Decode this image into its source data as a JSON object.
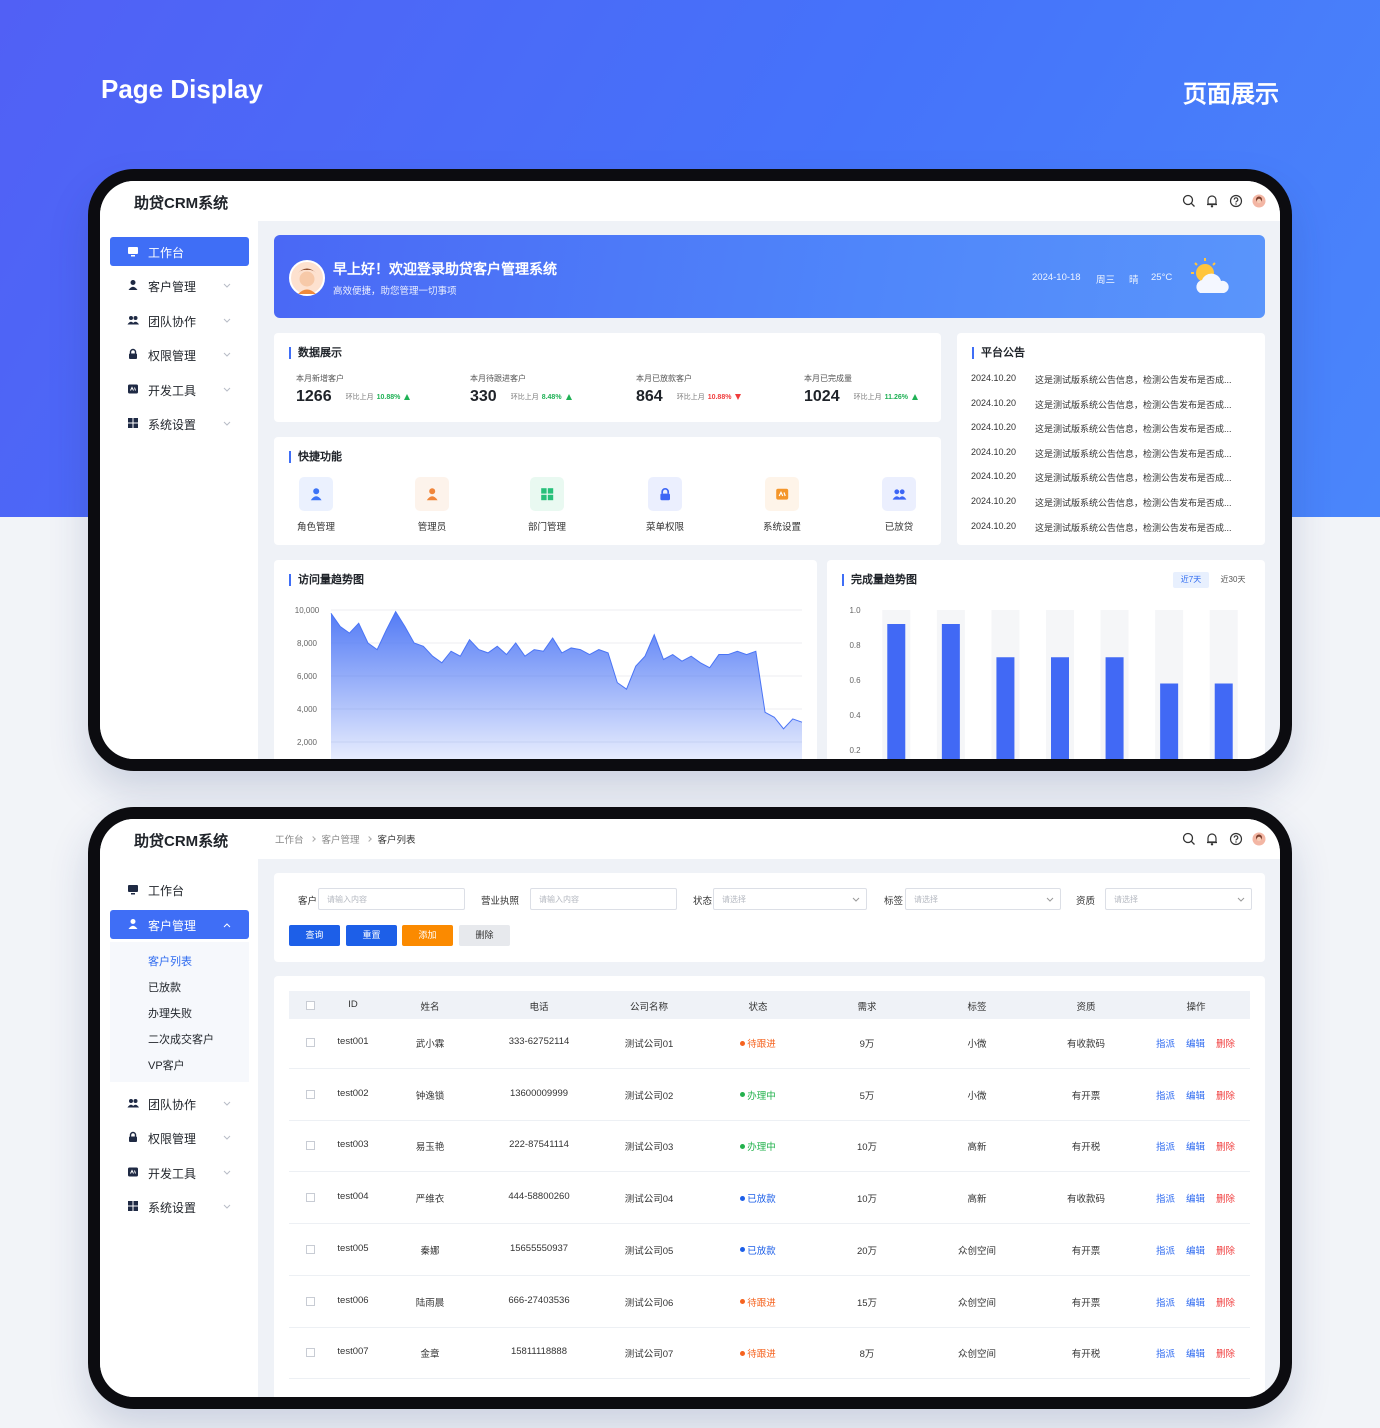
{
  "page": {
    "title": "Page Display",
    "subtitle": "页面展示"
  },
  "dashboard": {
    "app_title": "助贷CRM系统",
    "menu": [
      "工作台",
      "客户管理",
      "团队协作",
      "权限管理",
      "开发工具",
      "系统设置"
    ],
    "welcome": {
      "greeting": "早上好！欢迎登录助贷客户管理系统",
      "subtitle": "高效便捷，助您管理一切事项",
      "date": "2024-10-18",
      "weekday": "周三",
      "weather": "晴",
      "temperature": "25°C"
    },
    "stats": {
      "title": "数据展示",
      "items": [
        {
          "label": "本月新增客户",
          "value": 1266,
          "compare": "环比上月",
          "change": "10.88%",
          "trend": "up"
        },
        {
          "label": "本月待跟进客户",
          "value": 330,
          "compare": "环比上月",
          "change": "8.48%",
          "trend": "up"
        },
        {
          "label": "本月已放款客户",
          "value": 864,
          "compare": "环比上月",
          "change": "10.88%",
          "trend": "down"
        },
        {
          "label": "本月已完成量",
          "value": 1024,
          "compare": "环比上月",
          "change": "11.26%",
          "trend": "up"
        }
      ]
    },
    "quick": {
      "title": "快捷功能",
      "items": [
        {
          "label": "角色管理",
          "color": "#3d74f6"
        },
        {
          "label": "管理员",
          "color": "#f0853a"
        },
        {
          "label": "部门管理",
          "color": "#27c07a"
        },
        {
          "label": "菜单权限",
          "color": "#3d66f5"
        },
        {
          "label": "系统设置",
          "color": "#f4962b"
        },
        {
          "label": "已放贷",
          "color": "#3d66f5"
        }
      ]
    },
    "notices": {
      "title": "平台公告",
      "items": [
        {
          "date": "2024.10.20",
          "text": "这是测试版系统公告信息，检测公告发布是否成..."
        },
        {
          "date": "2024.10.20",
          "text": "这是测试版系统公告信息，检测公告发布是否成..."
        },
        {
          "date": "2024.10.20",
          "text": "这是测试版系统公告信息，检测公告发布是否成..."
        },
        {
          "date": "2024.10.20",
          "text": "这是测试版系统公告信息，检测公告发布是否成..."
        },
        {
          "date": "2024.10.20",
          "text": "这是测试版系统公告信息，检测公告发布是否成..."
        },
        {
          "date": "2024.10.20",
          "text": "这是测试版系统公告信息，检测公告发布是否成..."
        },
        {
          "date": "2024.10.20",
          "text": "这是测试版系统公告信息，检测公告发布是否成..."
        }
      ]
    }
  },
  "chart_data": [
    {
      "type": "area",
      "title": "访问量趋势图",
      "color": "#4a74f5",
      "values": [
        9800,
        9000,
        8600,
        9200,
        8000,
        7600,
        8800,
        9900,
        9000,
        8000,
        7800,
        7200,
        6800,
        7500,
        7200,
        8200,
        7600,
        7400,
        7800,
        7300,
        8000,
        7200,
        7600,
        7500,
        8300,
        7400,
        7700,
        7600,
        7300,
        7600,
        7400,
        5600,
        5200,
        6600,
        7200,
        8500,
        7000,
        7300,
        6900,
        7200,
        6800,
        6500,
        7300,
        7300,
        7500,
        7300,
        7500,
        3800,
        3500,
        2800,
        3400,
        3200
      ],
      "ylim": [
        0,
        10000
      ],
      "yticks": [
        {
          "value": 2000,
          "label": "2,000"
        },
        {
          "value": 4000,
          "label": "4,000"
        },
        {
          "value": 6000,
          "label": "6,000"
        },
        {
          "value": 8000,
          "label": "8,000"
        },
        {
          "value": 10000,
          "label": "10,000"
        }
      ],
      "grid": true
    },
    {
      "type": "bar",
      "title": "完成量趋势图",
      "tabs": [
        "近7天",
        "近30天"
      ],
      "active_tab": 0,
      "color": "#4169f5",
      "values": [
        0.92,
        0.92,
        0.73,
        0.73,
        0.73,
        0.58,
        0.58
      ],
      "ylim": [
        0,
        1
      ],
      "yticks": [
        0.2,
        0.4,
        0.6,
        0.8,
        {
          "value": 1,
          "label": "1.0"
        }
      ],
      "grid": false
    }
  ],
  "customers": {
    "breadcrumb": [
      "工作台",
      "客户管理",
      "客户列表"
    ],
    "submenu": [
      "客户列表",
      "已放款",
      "办理失败",
      "二次成交客户",
      "VP客户"
    ],
    "filters": [
      {
        "label": "客户",
        "placeholder": "请输入内容",
        "kind": "input"
      },
      {
        "label": "营业执照",
        "placeholder": "请输入内容",
        "kind": "input"
      },
      {
        "label": "状态",
        "placeholder": "请选择",
        "kind": "select"
      },
      {
        "label": "标签",
        "placeholder": "请选择",
        "kind": "select"
      },
      {
        "label": "资质",
        "placeholder": "请选择",
        "kind": "select"
      }
    ],
    "buttons": [
      {
        "label": "查询",
        "color": "#1d5fe8",
        "text_color": "#ffffff"
      },
      {
        "label": "重置",
        "color": "#1d5fe8",
        "text_color": "#ffffff"
      },
      {
        "label": "添加",
        "color": "#fb8a00",
        "text_color": "#ffffff"
      },
      {
        "label": "删除",
        "color": "#e7e9ed",
        "text_color": "#333333"
      }
    ],
    "table": {
      "columns": [
        "ID",
        "姓名",
        "电话",
        "公司名称",
        "状态",
        "需求",
        "标签",
        "资质",
        "操作"
      ],
      "actions": [
        {
          "label": "指派",
          "color": "#2f6bf0"
        },
        {
          "label": "编辑",
          "color": "#2f6bf0"
        },
        {
          "label": "删除",
          "color": "#f03c3c"
        }
      ],
      "rows": [
        {
          "id": "test001",
          "name": "武小霖",
          "phone": "333-62752114",
          "company": "测试公司01",
          "status": "待跟进",
          "status_color": "#f5631f",
          "demand": "9万",
          "tag": "小微",
          "qualification": "有收款码"
        },
        {
          "id": "test002",
          "name": "钟逸锁",
          "phone": "13600009999",
          "company": "测试公司02",
          "status": "办理中",
          "status_color": "#22b14c",
          "demand": "5万",
          "tag": "小微",
          "qualification": "有开票"
        },
        {
          "id": "test003",
          "name": "易玉艳",
          "phone": "222-87541114",
          "company": "测试公司03",
          "status": "办理中",
          "status_color": "#22b14c",
          "demand": "10万",
          "tag": "高新",
          "qualification": "有开税"
        },
        {
          "id": "test004",
          "name": "严维衣",
          "phone": "444-58800260",
          "company": "测试公司04",
          "status": "已放款",
          "status_color": "#1d5fe8",
          "demand": "10万",
          "tag": "高新",
          "qualification": "有收款码"
        },
        {
          "id": "test005",
          "name": "秦娜",
          "phone": "15655550937",
          "company": "测试公司05",
          "status": "已放款",
          "status_color": "#1d5fe8",
          "demand": "20万",
          "tag": "众创空间",
          "qualification": "有开票"
        },
        {
          "id": "test006",
          "name": "陆雨晨",
          "phone": "666-27403536",
          "company": "测试公司06",
          "status": "待跟进",
          "status_color": "#f5631f",
          "demand": "15万",
          "tag": "众创空间",
          "qualification": "有开票"
        },
        {
          "id": "test007",
          "name": "金章",
          "phone": "15811118888",
          "company": "测试公司07",
          "status": "待跟进",
          "status_color": "#f5631f",
          "demand": "8万",
          "tag": "众创空间",
          "qualification": "有开税"
        }
      ]
    }
  }
}
